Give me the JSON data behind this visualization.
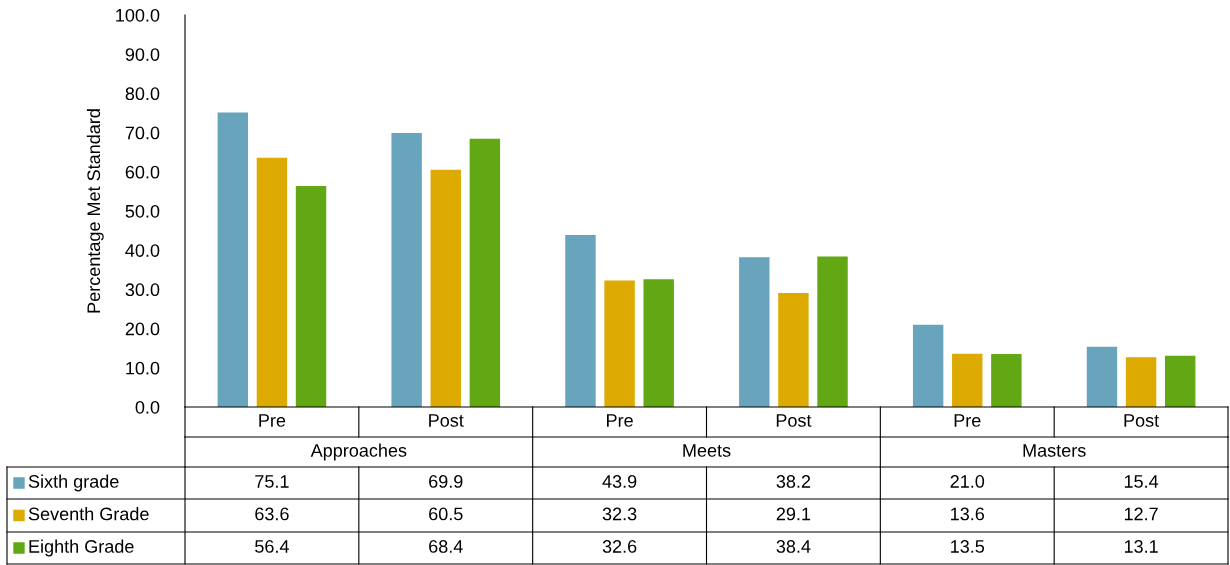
{
  "chart_data": {
    "type": "bar",
    "ylabel": "Percentage Met Standard",
    "categories": [
      "Pre",
      "Post",
      "Pre",
      "Post",
      "Pre",
      "Post"
    ],
    "annotations": [
      "Approaches",
      "Meets",
      "Masters"
    ],
    "series": [
      {
        "name": "Sixth grade",
        "color": "#68a4bb",
        "values": [
          75.1,
          69.9,
          43.9,
          38.2,
          21.0,
          15.4
        ],
        "value_labels": [
          "75.1",
          "69.9",
          "43.9",
          "38.2",
          "21.0",
          "15.4"
        ]
      },
      {
        "name": "Seventh Grade",
        "color": "#dcaa00",
        "values": [
          63.6,
          60.5,
          32.3,
          29.1,
          13.6,
          12.7
        ],
        "value_labels": [
          "63.6",
          "60.5",
          "32.3",
          "29.1",
          "13.6",
          "12.7"
        ]
      },
      {
        "name": "Eighth Grade",
        "color": "#62a814",
        "values": [
          56.4,
          68.4,
          32.6,
          38.4,
          13.5,
          13.1
        ],
        "value_labels": [
          "56.4",
          "68.4",
          "32.6",
          "38.4",
          "13.5",
          "13.1"
        ]
      }
    ],
    "ylim": [
      0,
      100
    ],
    "yticks": [
      {
        "value": 0,
        "label": "0.0"
      },
      {
        "value": 10,
        "label": "10.0"
      },
      {
        "value": 20,
        "label": "20.0"
      },
      {
        "value": 30,
        "label": "30.0"
      },
      {
        "value": 40,
        "label": "40.0"
      },
      {
        "value": 50,
        "label": "50.0"
      },
      {
        "value": 60,
        "label": "60.0"
      },
      {
        "value": 70,
        "label": "70.0"
      },
      {
        "value": 80,
        "label": "80.0"
      },
      {
        "value": 90,
        "label": "90.0"
      },
      {
        "value": 100,
        "label": "100.0"
      }
    ],
    "legend": "bottom",
    "grid": false
  }
}
